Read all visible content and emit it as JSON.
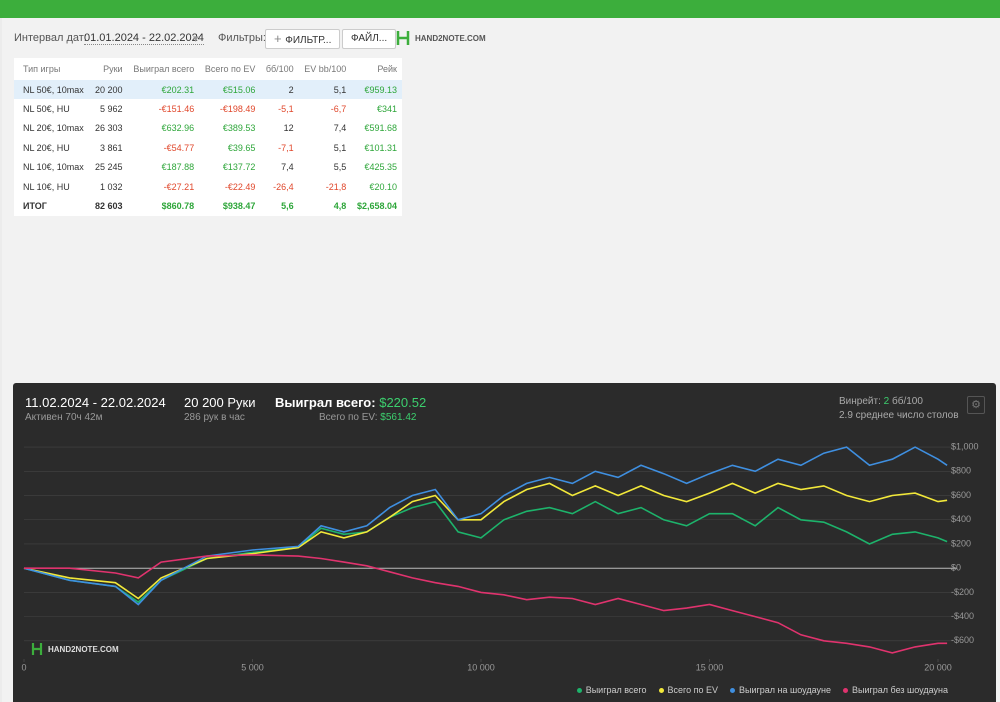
{
  "toolbar": {
    "interval_label": "Интервал дат:",
    "interval_value": "01.01.2024 - 22.02.2024",
    "filters_label": "Фильтры:",
    "filter_button": "ФИЛЬТР...",
    "file_button": "ФАЙЛ...",
    "logo": "HAND2NOTE.COM"
  },
  "table": {
    "headers": [
      "Тип игры",
      "Руки",
      "Выиграл всего",
      "Всего по EV",
      "бб/100",
      "EV bb/100",
      "Рейк"
    ],
    "rows": [
      [
        "NL 50€, 10max",
        "20 200",
        "€202.31",
        "€515.06",
        "2",
        "5,1",
        "€959.13"
      ],
      [
        "NL 50€, HU",
        "5 962",
        "-€151.46",
        "-€198.49",
        "-5,1",
        "-6,7",
        "€341"
      ],
      [
        "NL 20€, 10max",
        "26 303",
        "€632.96",
        "€389.53",
        "12",
        "7,4",
        "€591.68"
      ],
      [
        "NL 20€, HU",
        "3 861",
        "-€54.77",
        "€39.65",
        "-7,1",
        "5,1",
        "€101.31"
      ],
      [
        "NL 10€, 10max",
        "25 245",
        "€187.88",
        "€137.72",
        "7,4",
        "5,5",
        "€425.35"
      ],
      [
        "NL 10€, HU",
        "1 032",
        "-€27.21",
        "-€22.49",
        "-26,4",
        "-21,8",
        "€20.10"
      ]
    ],
    "total": [
      "ИТОГ",
      "82 603",
      "$860.78",
      "$938.47",
      "5,6",
      "4,8",
      "$2,658.04"
    ]
  },
  "chart_panel": {
    "period": "11.02.2024 - 22.02.2024",
    "active": "Активен 70ч 42м",
    "hands": "20 200 Руки",
    "rate": "286 рук в час",
    "won_label": "Выиграл всего:",
    "won_value": "$220.52",
    "ev_label": "Всего по EV:",
    "ev_value": "$561.42",
    "winrate_label": "Винрейт:",
    "winrate_value": "2",
    "winrate_unit": "бб/100",
    "tables": "2.9 среднее число столов",
    "watermark": "HAND2NOTE.COM"
  },
  "chart_data": {
    "type": "line",
    "x": [
      0,
      1000,
      2000,
      2500,
      3000,
      4000,
      5000,
      6000,
      6500,
      7000,
      7500,
      8000,
      8500,
      9000,
      9500,
      10000,
      10500,
      11000,
      11500,
      12000,
      12500,
      13000,
      13500,
      14000,
      14500,
      15000,
      15500,
      16000,
      16500,
      17000,
      17500,
      18000,
      18500,
      19000,
      19500,
      20000,
      20200
    ],
    "series": [
      {
        "name": "Выиграл всего",
        "color": "#1db36b",
        "values": [
          0,
          -100,
          -150,
          -280,
          -100,
          80,
          130,
          170,
          330,
          280,
          300,
          420,
          500,
          550,
          300,
          250,
          400,
          470,
          500,
          450,
          550,
          450,
          500,
          400,
          350,
          450,
          450,
          350,
          500,
          400,
          380,
          300,
          200,
          280,
          300,
          250,
          220
        ]
      },
      {
        "name": "Всего по EV",
        "color": "#f2e83a",
        "values": [
          0,
          -80,
          -120,
          -250,
          -80,
          80,
          120,
          170,
          300,
          250,
          300,
          420,
          550,
          600,
          400,
          400,
          550,
          650,
          700,
          600,
          680,
          600,
          680,
          600,
          550,
          620,
          700,
          620,
          700,
          650,
          680,
          600,
          550,
          600,
          620,
          550,
          561
        ]
      },
      {
        "name": "Выиграл на шоудауне",
        "color": "#3f8fe0",
        "values": [
          0,
          -100,
          -150,
          -300,
          -100,
          100,
          150,
          180,
          350,
          300,
          350,
          500,
          600,
          650,
          400,
          450,
          600,
          700,
          750,
          700,
          800,
          750,
          850,
          780,
          700,
          780,
          850,
          800,
          900,
          850,
          950,
          1000,
          850,
          900,
          1000,
          900,
          850
        ]
      },
      {
        "name": "Выиграл без шоудауна",
        "color": "#e0336e",
        "values": [
          0,
          0,
          -40,
          -80,
          50,
          100,
          110,
          100,
          80,
          50,
          20,
          -30,
          -80,
          -120,
          -150,
          -200,
          -220,
          -260,
          -240,
          -250,
          -300,
          -250,
          -300,
          -350,
          -330,
          -300,
          -350,
          -400,
          -450,
          -550,
          -600,
          -620,
          -650,
          -700,
          -650,
          -620,
          -620
        ]
      }
    ],
    "xlim": [
      0,
      20200
    ],
    "xticks": [
      0,
      {
        "value": 5000,
        "label": "5 000"
      },
      {
        "value": 10000,
        "label": "10 000"
      },
      {
        "value": 15000,
        "label": "15 000"
      },
      {
        "value": 20000,
        "label": "20 000"
      }
    ],
    "ylim": [
      -750,
      1100
    ],
    "yticks": [
      {
        "value": -600,
        "label": "-$600"
      },
      {
        "value": -400,
        "label": "-$400"
      },
      {
        "value": -200,
        "label": "-$200"
      },
      {
        "value": 0,
        "label": "$0"
      },
      {
        "value": 200,
        "label": "$200"
      },
      {
        "value": 400,
        "label": "$400"
      },
      {
        "value": 600,
        "label": "$600"
      },
      {
        "value": 800,
        "label": "$800"
      },
      {
        "value": 1000,
        "label": "$1,000"
      }
    ],
    "grid": true
  }
}
